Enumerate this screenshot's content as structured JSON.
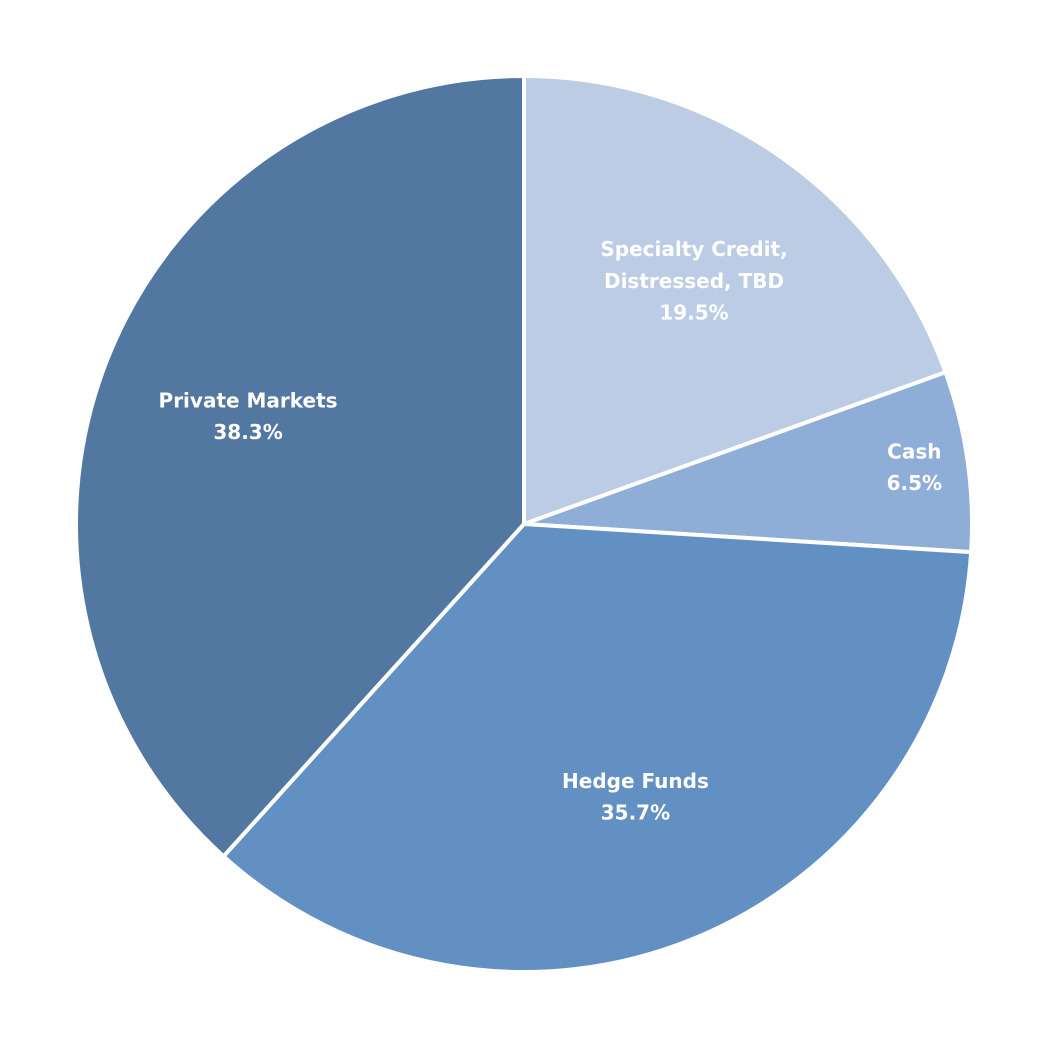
{
  "chart_data": {
    "type": "pie",
    "categories": [
      "Specialty Credit, Distressed, TBD",
      "Cash",
      "Hedge Funds",
      "Private Markets"
    ],
    "values": [
      19.5,
      6.5,
      35.7,
      38.3
    ],
    "value_labels": [
      "19.5%",
      "6.5%",
      "35.7%",
      "38.3%"
    ],
    "colors": [
      "#bccce5",
      "#8eaed8",
      "#6390c2",
      "#5277a1"
    ]
  }
}
